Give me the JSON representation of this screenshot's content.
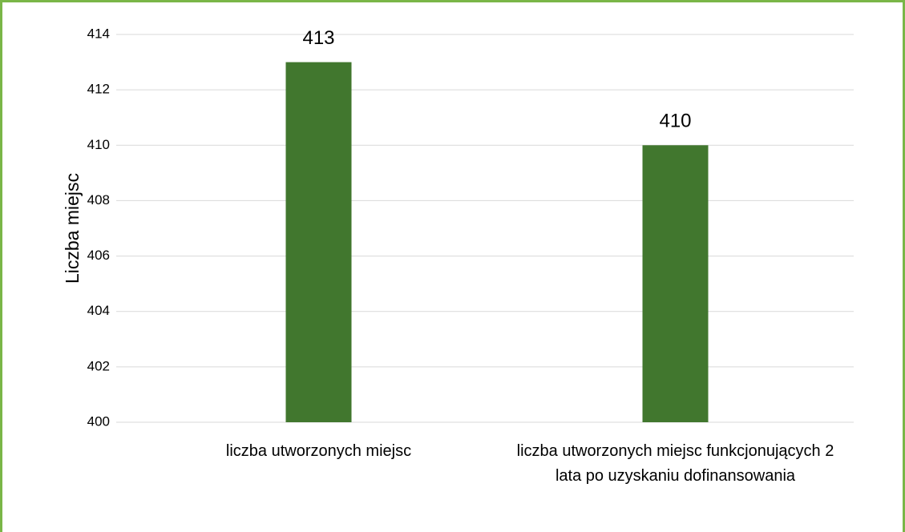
{
  "chart_data": {
    "type": "bar",
    "y_label": "Liczba miejsc",
    "categories": [
      "liczba utworzonych miejsc",
      "liczba utworzonych miejsc funkcjonujących 2 lata po uzyskaniu dofinansowania"
    ],
    "values": [
      413,
      410
    ],
    "color": "#41772e",
    "ylim": [
      400,
      414
    ],
    "yticks": [
      400,
      402,
      404,
      406,
      408,
      410,
      412,
      414
    ],
    "grid": true
  }
}
